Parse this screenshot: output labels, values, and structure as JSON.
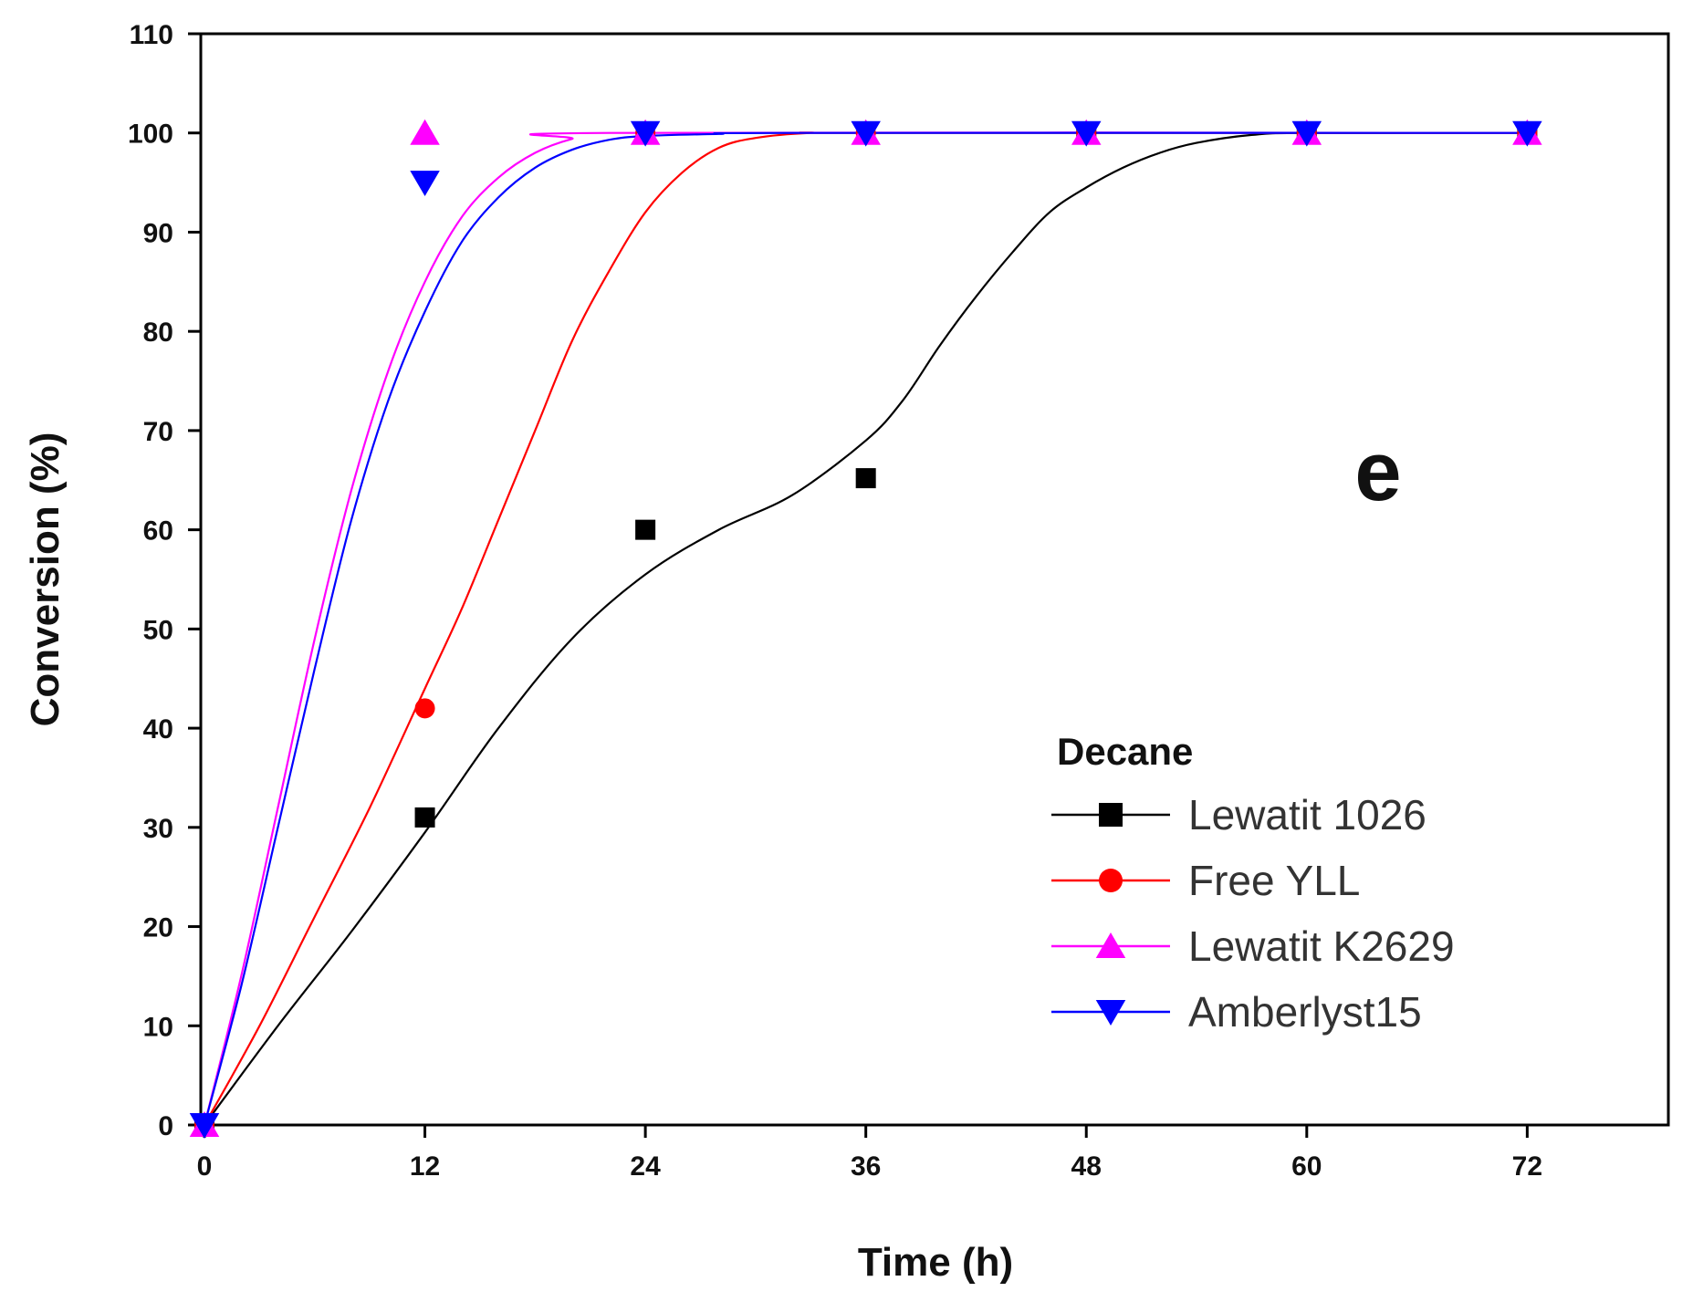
{
  "chart_data": {
    "type": "line",
    "title": "",
    "panel_label": "e",
    "xlabel": "Time (h)",
    "ylabel": "Conversion (%)",
    "xlim": [
      0,
      80
    ],
    "ylim": [
      0,
      110
    ],
    "xticks": [
      "0",
      "12",
      "24",
      "36",
      "48",
      "60",
      "72"
    ],
    "yticks": [
      "0",
      "10",
      "20",
      "30",
      "40",
      "50",
      "60",
      "70",
      "80",
      "90",
      "100",
      "110"
    ],
    "legend_title": "Decane",
    "legend_position": "bottom-right",
    "grid": false,
    "series": [
      {
        "name": "Lewatit 1026",
        "color": "#000000",
        "marker": "square",
        "points": [
          [
            0,
            0
          ],
          [
            12,
            31
          ],
          [
            24,
            60
          ],
          [
            36,
            65.2
          ],
          [
            48,
            100
          ],
          [
            60,
            100
          ],
          [
            72,
            100
          ]
        ],
        "fit": [
          [
            0,
            0
          ],
          [
            4,
            10
          ],
          [
            8,
            19.5
          ],
          [
            12,
            29.5
          ],
          [
            16,
            40
          ],
          [
            20,
            49
          ],
          [
            24,
            55.5
          ],
          [
            28,
            60
          ],
          [
            32,
            63.5
          ],
          [
            36,
            69
          ],
          [
            38,
            73
          ],
          [
            40,
            78.5
          ],
          [
            42,
            83.5
          ],
          [
            44,
            88
          ],
          [
            46,
            92
          ],
          [
            48,
            94.5
          ],
          [
            50,
            96.5
          ],
          [
            52,
            98
          ],
          [
            54,
            99
          ],
          [
            57,
            99.8
          ],
          [
            60,
            100
          ],
          [
            72,
            100
          ]
        ]
      },
      {
        "name": "Free YLL",
        "color": "#ff0000",
        "marker": "circle",
        "points": [
          [
            0,
            0
          ],
          [
            12,
            42
          ],
          [
            24,
            100
          ],
          [
            36,
            100
          ],
          [
            48,
            100
          ],
          [
            60,
            100
          ],
          [
            72,
            100
          ]
        ],
        "fit": [
          [
            0,
            0
          ],
          [
            3,
            10
          ],
          [
            6,
            21
          ],
          [
            9,
            32
          ],
          [
            12,
            44
          ],
          [
            14,
            52
          ],
          [
            16,
            61
          ],
          [
            18,
            70
          ],
          [
            20,
            79
          ],
          [
            22,
            86
          ],
          [
            24,
            92
          ],
          [
            26,
            96
          ],
          [
            28,
            98.5
          ],
          [
            30,
            99.5
          ],
          [
            33,
            100
          ],
          [
            36,
            100
          ],
          [
            72,
            100
          ]
        ]
      },
      {
        "name": "Lewatit K2629",
        "color": "#ff00ff",
        "marker": "triangle-up",
        "points": [
          [
            0,
            0
          ],
          [
            12,
            100
          ],
          [
            24,
            100
          ],
          [
            36,
            100
          ],
          [
            48,
            100
          ],
          [
            60,
            100
          ],
          [
            72,
            100
          ]
        ],
        "fit": [
          [
            0,
            0
          ],
          [
            2,
            15
          ],
          [
            4,
            32
          ],
          [
            6,
            49
          ],
          [
            8,
            64
          ],
          [
            10,
            76
          ],
          [
            12,
            85
          ],
          [
            14,
            91.5
          ],
          [
            16,
            95.5
          ],
          [
            18,
            98
          ],
          [
            20,
            99.4
          ],
          [
            22,
            100
          ],
          [
            72,
            100
          ]
        ]
      },
      {
        "name": "Amberlyst15",
        "color": "#0000ff",
        "marker": "triangle-down",
        "points": [
          [
            0,
            0
          ],
          [
            12,
            95
          ],
          [
            24,
            100
          ],
          [
            36,
            100
          ],
          [
            48,
            100
          ],
          [
            60,
            100
          ],
          [
            72,
            100
          ]
        ],
        "fit": [
          [
            0,
            0
          ],
          [
            2,
            14
          ],
          [
            4,
            30
          ],
          [
            6,
            46
          ],
          [
            8,
            61
          ],
          [
            10,
            73
          ],
          [
            12,
            82
          ],
          [
            14,
            89
          ],
          [
            16,
            93.5
          ],
          [
            18,
            96.5
          ],
          [
            20,
            98.3
          ],
          [
            22,
            99.3
          ],
          [
            24,
            99.7
          ],
          [
            28,
            99.9
          ],
          [
            32,
            100
          ],
          [
            72,
            100
          ]
        ]
      }
    ]
  }
}
